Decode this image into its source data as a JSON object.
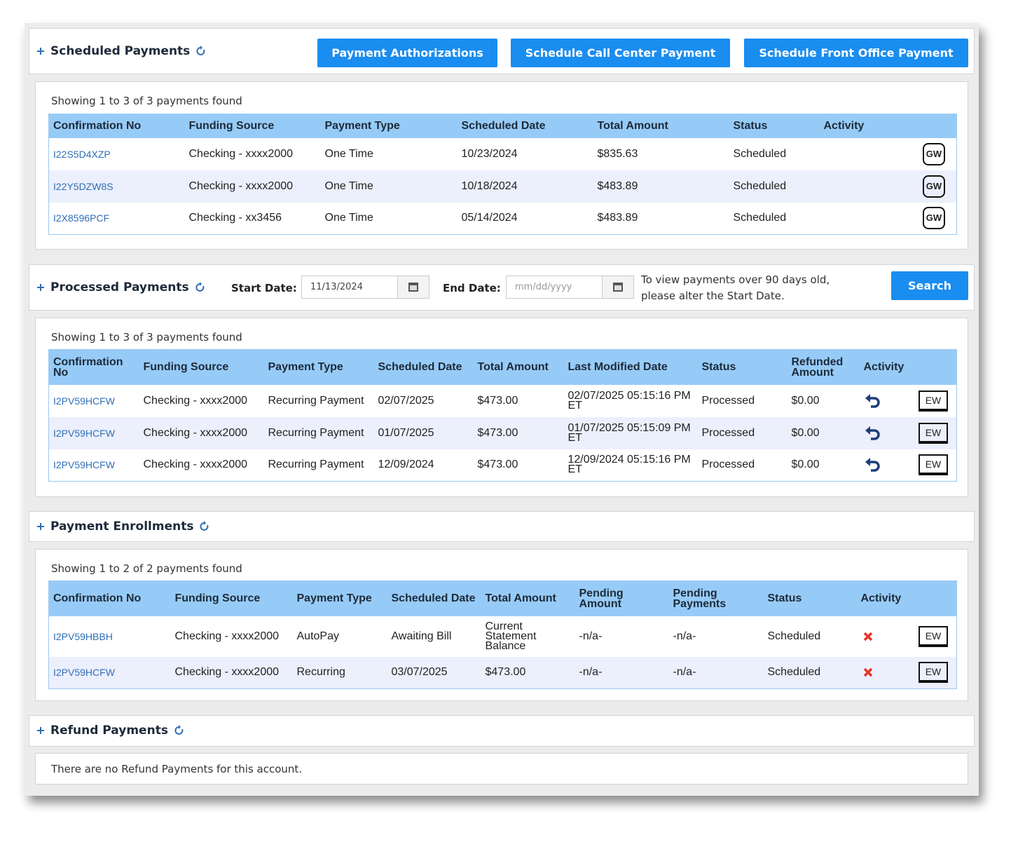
{
  "scheduled": {
    "title": "Scheduled Payments",
    "buttons": [
      "Payment Authorizations",
      "Schedule Call Center Payment",
      "Schedule Front Office Payment"
    ],
    "summary": "Showing 1 to 3 of 3 payments found",
    "columns": [
      "Confirmation No",
      "Funding Source",
      "Payment Type",
      "Scheduled Date",
      "Total Amount",
      "Status",
      "Activity"
    ],
    "rows": [
      [
        "I22S5D4XZP",
        "Checking - xxxx2000",
        "One Time",
        "10/23/2024",
        "$835.63",
        "Scheduled",
        "GW"
      ],
      [
        "I22Y5DZW8S",
        "Checking - xxxx2000",
        "One Time",
        "10/18/2024",
        "$483.89",
        "Scheduled",
        "GW"
      ],
      [
        "I2X8596PCF",
        "Checking - xx3456",
        "One Time",
        "05/14/2024",
        "$483.89",
        "Scheduled",
        "GW"
      ]
    ]
  },
  "processed": {
    "title": "Processed Payments",
    "start_label": "Start Date:",
    "start_value": "11/13/2024",
    "end_label": "End Date:",
    "end_placeholder": "mm/dd/yyyy",
    "note": [
      "To view payments over 90 days old,",
      "please alter the Start Date."
    ],
    "search": "Search",
    "summary": "Showing 1 to 3 of 3 payments found",
    "columns": [
      "Confirmation No",
      "Funding Source",
      "Payment Type",
      "Scheduled Date",
      "Total Amount",
      "Last Modified Date",
      "Status",
      "Refunded Amount",
      "Activity"
    ],
    "rows": [
      [
        "I2PV59HCFW",
        "Checking - xxxx2000",
        "Recurring Payment",
        "02/07/2025",
        "$473.00",
        "02/07/2025 05:15:16 PM ET",
        "Processed",
        "$0.00",
        "EW"
      ],
      [
        "I2PV59HCFW",
        "Checking - xxxx2000",
        "Recurring Payment",
        "01/07/2025",
        "$473.00",
        "01/07/2025 05:15:09 PM ET",
        "Processed",
        "$0.00",
        "EW"
      ],
      [
        "I2PV59HCFW",
        "Checking - xxxx2000",
        "Recurring Payment",
        "12/09/2024",
        "$473.00",
        "12/09/2024 05:15:16 PM ET",
        "Processed",
        "$0.00",
        "EW"
      ]
    ]
  },
  "enrollments": {
    "title": "Payment Enrollments",
    "summary": "Showing 1 to 2 of 2 payments found",
    "columns": [
      "Confirmation No",
      "Funding Source",
      "Payment Type",
      "Scheduled Date",
      "Total Amount",
      "Pending Amount",
      "Pending Payments",
      "Status",
      "Activity"
    ],
    "rows": [
      [
        "I2PV59HBBH",
        "Checking - xxxx2000",
        "AutoPay",
        "Awaiting Bill",
        "Current Statement Balance",
        "-n/a-",
        "-n/a-",
        "Scheduled",
        "EW"
      ],
      [
        "I2PV59HCFW",
        "Checking - xxxx2000",
        "Recurring",
        "03/07/2025",
        "$473.00",
        "-n/a-",
        "-n/a-",
        "Scheduled",
        "EW"
      ]
    ]
  },
  "refunds": {
    "title": "Refund Payments",
    "message": "There are no Refund Payments for this account."
  }
}
